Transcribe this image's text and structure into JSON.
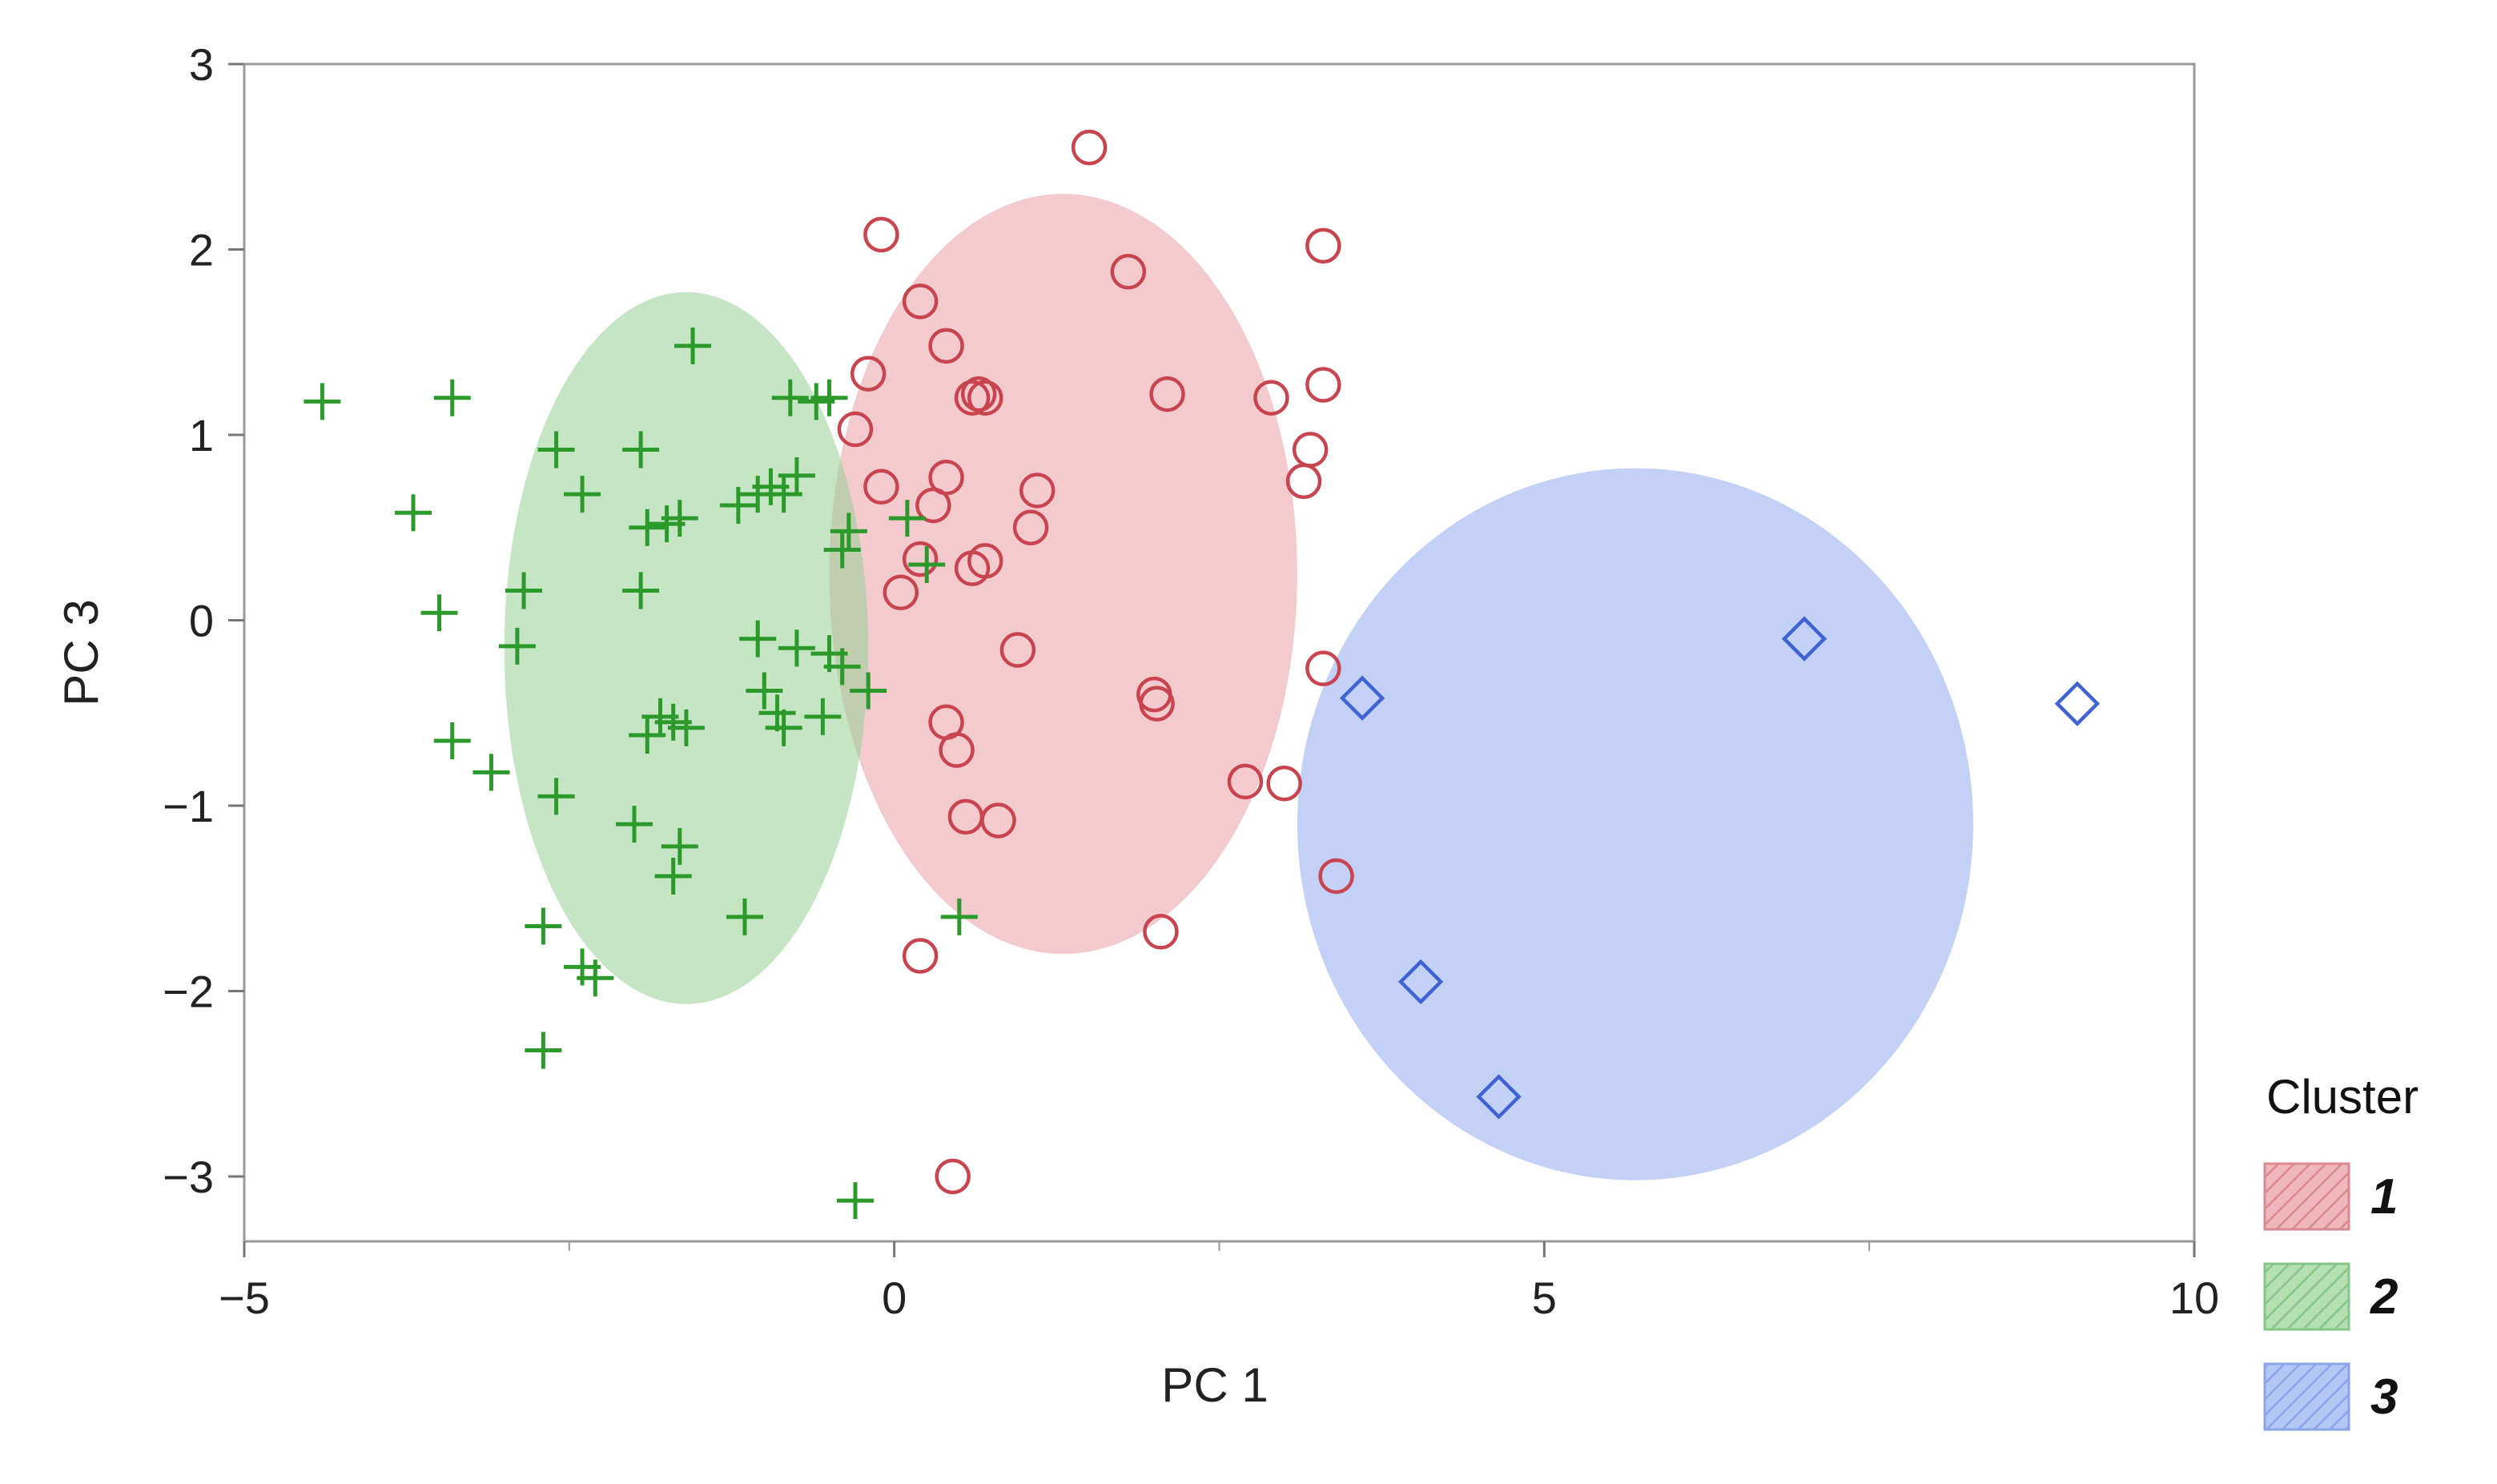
{
  "chart_data": {
    "type": "scatter",
    "title": "",
    "xlabel": "PC 1",
    "ylabel": "PC 3",
    "xlim": [
      -5,
      10
    ],
    "ylim": [
      -3.35,
      3
    ],
    "xticks": [
      -5,
      0,
      5,
      10
    ],
    "xtick_labels": [
      "−5",
      "0",
      "5",
      "10"
    ],
    "yticks": [
      -3,
      -2,
      -1,
      0,
      1,
      2,
      3
    ],
    "ytick_labels": [
      "−3",
      "−2",
      "−1",
      "0",
      "1",
      "2",
      "3"
    ],
    "grid": false,
    "legend": {
      "title": "Cluster",
      "placement": "bottom-right",
      "entries": [
        "1",
        "2",
        "3"
      ]
    },
    "colors": {
      "1": {
        "stroke": "#c8454f",
        "fill": "#e9a1a6"
      },
      "2": {
        "stroke": "#2b9a2b",
        "fill": "#96d096"
      },
      "3": {
        "stroke": "#3f63d3",
        "fill": "#93acef"
      }
    },
    "series": [
      {
        "name": "1",
        "marker": "circle",
        "ellipse": {
          "cx": 1.3,
          "cy": 0.25,
          "rx": 1.8,
          "ry": 2.05
        },
        "points": [
          [
            1.5,
            2.55
          ],
          [
            -0.1,
            2.08
          ],
          [
            1.8,
            1.88
          ],
          [
            3.3,
            2.02
          ],
          [
            0.2,
            1.72
          ],
          [
            0.4,
            1.48
          ],
          [
            -0.2,
            1.33
          ],
          [
            0.6,
            1.2
          ],
          [
            0.65,
            1.22
          ],
          [
            0.7,
            1.2
          ],
          [
            2.1,
            1.22
          ],
          [
            2.9,
            1.2
          ],
          [
            3.3,
            1.27
          ],
          [
            -0.3,
            1.03
          ],
          [
            3.2,
            0.92
          ],
          [
            3.15,
            0.75
          ],
          [
            -0.1,
            0.72
          ],
          [
            0.4,
            0.77
          ],
          [
            1.1,
            0.7
          ],
          [
            0.3,
            0.62
          ],
          [
            1.05,
            0.5
          ],
          [
            0.2,
            0.33
          ],
          [
            0.6,
            0.28
          ],
          [
            0.7,
            0.32
          ],
          [
            0.05,
            0.15
          ],
          [
            0.95,
            -0.16
          ],
          [
            3.3,
            -0.26
          ],
          [
            2.0,
            -0.4
          ],
          [
            2.02,
            -0.45
          ],
          [
            0.4,
            -0.55
          ],
          [
            0.48,
            -0.7
          ],
          [
            2.7,
            -0.87
          ],
          [
            3.0,
            -0.88
          ],
          [
            0.55,
            -1.06
          ],
          [
            0.8,
            -1.08
          ],
          [
            3.4,
            -1.38
          ],
          [
            2.05,
            -1.68
          ],
          [
            0.2,
            -1.81
          ],
          [
            0.45,
            -3.0
          ]
        ]
      },
      {
        "name": "2",
        "marker": "plus",
        "ellipse": {
          "cx": -1.6,
          "cy": -0.15,
          "rx": 1.4,
          "ry": 1.92
        },
        "points": [
          [
            -4.4,
            1.18
          ],
          [
            -3.4,
            1.2
          ],
          [
            -1.55,
            1.48
          ],
          [
            -0.8,
            1.2
          ],
          [
            -0.6,
            1.18
          ],
          [
            -0.5,
            1.2
          ],
          [
            -2.6,
            0.92
          ],
          [
            -1.95,
            0.92
          ],
          [
            -2.4,
            0.68
          ],
          [
            -3.7,
            0.58
          ],
          [
            -1.2,
            0.62
          ],
          [
            -1.05,
            0.68
          ],
          [
            -0.95,
            0.72
          ],
          [
            -0.85,
            0.68
          ],
          [
            -0.75,
            0.78
          ],
          [
            -1.9,
            0.5
          ],
          [
            -1.75,
            0.52
          ],
          [
            -1.65,
            0.55
          ],
          [
            -0.35,
            0.48
          ],
          [
            -0.4,
            0.38
          ],
          [
            0.1,
            0.55
          ],
          [
            0.25,
            0.3
          ],
          [
            -2.85,
            0.16
          ],
          [
            -1.95,
            0.16
          ],
          [
            -3.5,
            0.04
          ],
          [
            -2.9,
            -0.14
          ],
          [
            -1.05,
            -0.1
          ],
          [
            -0.75,
            -0.15
          ],
          [
            -0.5,
            -0.18
          ],
          [
            -0.4,
            -0.25
          ],
          [
            -0.2,
            -0.38
          ],
          [
            -1.0,
            -0.38
          ],
          [
            -0.9,
            -0.5
          ],
          [
            -0.85,
            -0.58
          ],
          [
            -0.55,
            -0.52
          ],
          [
            -1.8,
            -0.52
          ],
          [
            -1.7,
            -0.55
          ],
          [
            -1.6,
            -0.58
          ],
          [
            -1.9,
            -0.62
          ],
          [
            -3.4,
            -0.65
          ],
          [
            -3.1,
            -0.82
          ],
          [
            -2.6,
            -0.95
          ],
          [
            -2.0,
            -1.1
          ],
          [
            -1.65,
            -1.22
          ],
          [
            -1.7,
            -1.38
          ],
          [
            -1.15,
            -1.6
          ],
          [
            -2.7,
            -1.65
          ],
          [
            -2.4,
            -1.87
          ],
          [
            -2.3,
            -1.93
          ],
          [
            0.5,
            -1.6
          ],
          [
            -2.7,
            -2.32
          ],
          [
            -0.3,
            -3.13
          ]
        ]
      },
      {
        "name": "3",
        "marker": "diamond",
        "ellipse": {
          "cx": 5.7,
          "cy": -1.1,
          "rx": 2.6,
          "ry": 1.92
        },
        "points": [
          [
            7.0,
            -0.1
          ],
          [
            9.1,
            -0.45
          ],
          [
            3.6,
            -0.42
          ],
          [
            4.05,
            -1.95
          ],
          [
            4.65,
            -2.57
          ]
        ]
      }
    ]
  }
}
